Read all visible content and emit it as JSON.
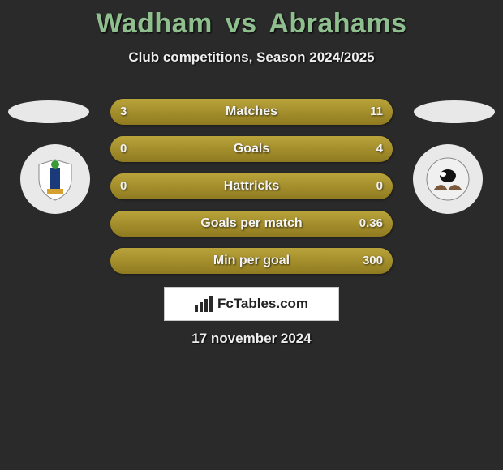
{
  "title": {
    "player1": "Wadham",
    "vs": "vs",
    "player2": "Abrahams",
    "color": "#8fbf8f",
    "fontsize": 34
  },
  "subtitle": "Club competitions, Season 2024/2025",
  "date": "17 november 2024",
  "logo_text": "FcTables.com",
  "stats": {
    "type": "comparison-bars",
    "bar_bg": "#a08a2a",
    "bar_fill": "#b09530",
    "text_color": "#f2f2f2",
    "rows": [
      {
        "label": "Matches",
        "left": "3",
        "right": "11",
        "left_pct": 21,
        "right_pct": 79
      },
      {
        "label": "Goals",
        "left": "0",
        "right": "4",
        "left_pct": 0,
        "right_pct": 100
      },
      {
        "label": "Hattricks",
        "left": "0",
        "right": "0",
        "left_pct": 50,
        "right_pct": 50
      },
      {
        "label": "Goals per match",
        "left": "",
        "right": "0.36",
        "left_pct": 0,
        "right_pct": 100
      },
      {
        "label": "Min per goal",
        "left": "",
        "right": "300",
        "left_pct": 0,
        "right_pct": 100
      }
    ]
  },
  "background_color": "#2a2a2a",
  "crest_bg": "#e9e9e9"
}
